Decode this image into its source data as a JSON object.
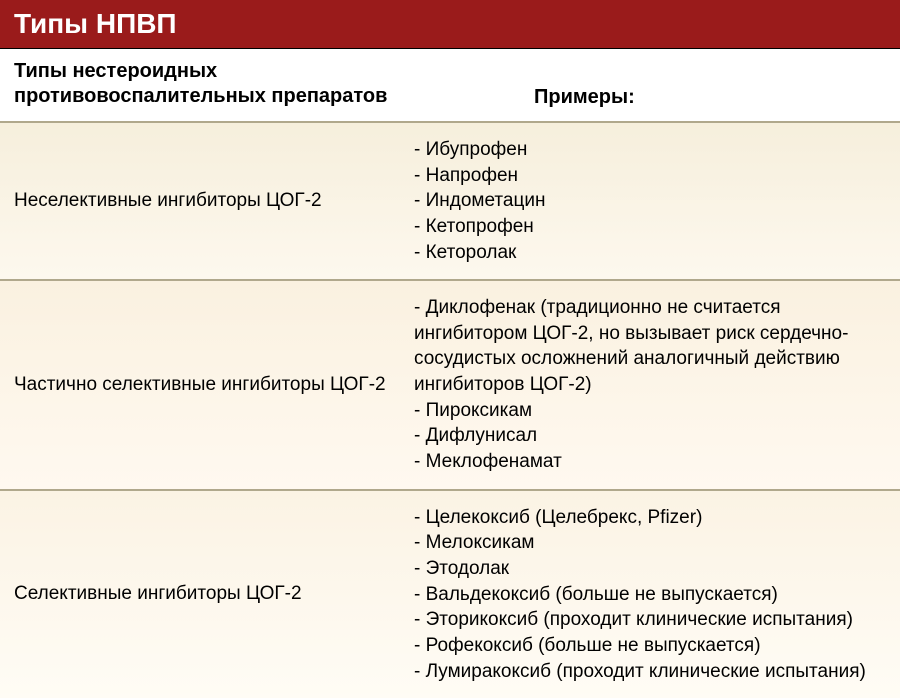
{
  "title": "Типы НПВП",
  "header": {
    "left": "Типы нестероидных противовоспалительных препаратов",
    "right": "Примеры:"
  },
  "rows": [
    {
      "label": "Неселективные ингибиторы ЦОГ-2",
      "items": [
        "- Ибупрофен",
        "- Напрофен",
        "- Индометацин",
        "- Кетопрофен",
        "- Кеторолак"
      ]
    },
    {
      "label": "Частично селективные ингибиторы ЦОГ-2",
      "items": [
        "- Диклофенак (традиционно не считается ингибитором ЦОГ-2, но вызывает риск сердечно-сосудистых осложнений аналогичный действию ингибиторов ЦОГ-2)",
        "- Пироксикам",
        "- Дифлунисал",
        "- Меклофенамат"
      ]
    },
    {
      "label": "Селективные ингибиторы ЦОГ-2",
      "items": [
        "- Целекоксиб (Целебрекс, Pfizer)",
        "- Мелоксикам",
        "- Этодолак",
        "- Вальдекоксиб (больше не выпускается)",
        "- Эторикоксиб (проходит клинические испытания)",
        "- Рофекоксиб (больше не выпускается)",
        "- Лумиракоксиб (проходит клинические испытания)"
      ]
    }
  ],
  "colors": {
    "title_bg": "#9a1b1b",
    "title_text": "#ffffff",
    "border": "#b0a88c",
    "row_bg_top": "#f6efdc",
    "row_bg_bottom": "#fdf8ee"
  },
  "typography": {
    "title_fontsize": 28,
    "header_fontsize": 20,
    "body_fontsize": 19,
    "font_family": "Arial"
  }
}
